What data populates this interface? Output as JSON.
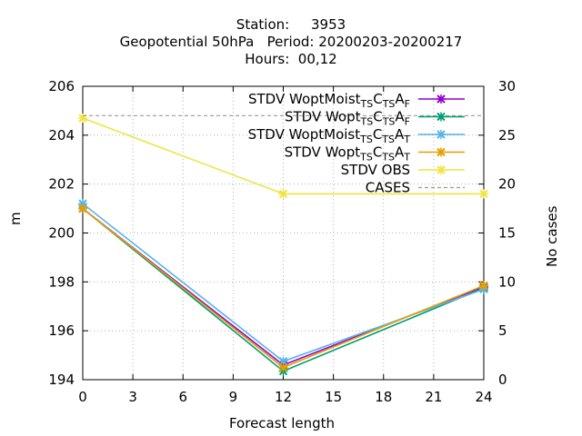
{
  "chart_data": {
    "type": "line",
    "title_lines": [
      "Station:     3953",
      "Geopotential 50hPa   Period: 20200203-20200217",
      "Hours:  00,12"
    ],
    "xlabel": "Forecast length",
    "ylabel": "m",
    "y2label": "No cases",
    "x_ticks": [
      0,
      3,
      6,
      9,
      12,
      15,
      18,
      21,
      24
    ],
    "xlim": [
      0,
      24
    ],
    "y_ticks": [
      194,
      196,
      198,
      200,
      202,
      204,
      206
    ],
    "ylim": [
      194,
      206
    ],
    "y2_ticks": [
      0,
      5,
      10,
      15,
      20,
      25,
      30
    ],
    "y2lim": [
      0,
      30
    ],
    "grid": true,
    "legend_position": "top-right",
    "series": [
      {
        "name": "STDV WoptMoist_TS C_TS A_F",
        "label_main": "STDV WoptMoist",
        "label_parts": [
          [
            "TS",
            "C"
          ],
          [
            "TS",
            "A"
          ],
          [
            "F",
            ""
          ]
        ],
        "color": "#9400d3",
        "marker": "x",
        "x": [
          0,
          12,
          24
        ],
        "values": [
          201.0,
          194.6,
          197.8
        ]
      },
      {
        "name": "STDV Wopt_TS C_TS A_F",
        "label_main": "STDV Wopt",
        "label_parts": [
          [
            "TS",
            "C"
          ],
          [
            "TS",
            "A"
          ],
          [
            "F",
            ""
          ]
        ],
        "color": "#009e73",
        "marker": "x",
        "x": [
          0,
          12,
          24
        ],
        "values": [
          201.0,
          194.35,
          197.75
        ]
      },
      {
        "name": "STDV WoptMoist_TS C_TS A_T",
        "label_main": "STDV WoptMoist",
        "label_parts": [
          [
            "TS",
            "C"
          ],
          [
            "TS",
            "A"
          ],
          [
            "T",
            ""
          ]
        ],
        "color": "#56b4e9",
        "marker": "x",
        "x": [
          0,
          12,
          24
        ],
        "values": [
          201.2,
          194.75,
          197.7
        ]
      },
      {
        "name": "STDV Wopt_TS C_TS A_T",
        "label_main": "STDV Wopt",
        "label_parts": [
          [
            "TS",
            "C"
          ],
          [
            "TS",
            "A"
          ],
          [
            "T",
            ""
          ]
        ],
        "color": "#e69f00",
        "marker": "x",
        "x": [
          0,
          12,
          24
        ],
        "values": [
          201.0,
          194.5,
          197.85
        ]
      },
      {
        "name": "STDV OBS",
        "label_main": "STDV OBS",
        "label_parts": [],
        "color": "#f0e442",
        "marker": "x",
        "x": [
          0,
          12,
          24
        ],
        "values": [
          204.7,
          201.6,
          201.6
        ]
      },
      {
        "name": "CASES",
        "label_main": "CASES",
        "label_parts": [],
        "color": "#999999",
        "marker": "none",
        "dashed": true,
        "axis": "y2",
        "x": [
          0,
          12,
          24
        ],
        "values": [
          27,
          27,
          27
        ]
      }
    ]
  }
}
